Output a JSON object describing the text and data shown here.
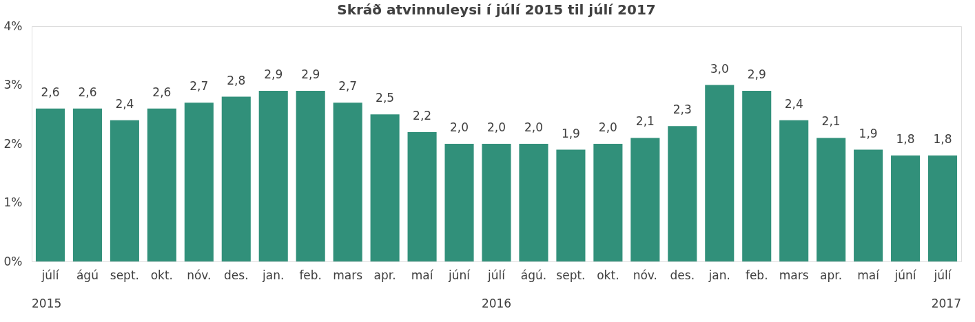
{
  "chart_data": {
    "type": "bar",
    "title": "Skráð atvinnuleysi í júlí 2015 til júlí 2017",
    "categories": [
      "júlí",
      "ágú",
      "sept.",
      "okt.",
      "nóv.",
      "des.",
      "jan.",
      "feb.",
      "mars",
      "apr.",
      "maí",
      "júní",
      "júlí",
      "ágú.",
      "sept.",
      "okt.",
      "nóv.",
      "des.",
      "jan.",
      "feb.",
      "mars",
      "apr.",
      "maí",
      "júní",
      "júlí"
    ],
    "values": [
      2.6,
      2.6,
      2.4,
      2.6,
      2.7,
      2.8,
      2.9,
      2.9,
      2.7,
      2.5,
      2.2,
      2.0,
      2.0,
      2.0,
      1.9,
      2.0,
      2.1,
      2.3,
      3.0,
      2.9,
      2.4,
      2.1,
      1.9,
      1.8,
      1.8
    ],
    "value_labels": [
      "2,6",
      "2,6",
      "2,4",
      "2,6",
      "2,7",
      "2,8",
      "2,9",
      "2,9",
      "2,7",
      "2,5",
      "2,2",
      "2,0",
      "2,0",
      "2,0",
      "1,9",
      "2,0",
      "2,1",
      "2,3",
      "3,0",
      "2,9",
      "2,4",
      "2,1",
      "1,9",
      "1,8",
      "1,8"
    ],
    "color": "#31907a",
    "ylim": [
      0,
      4
    ],
    "yticks": [
      {
        "value": 0,
        "label": "0%"
      },
      {
        "value": 1,
        "label": "1%"
      },
      {
        "value": 2,
        "label": "2%"
      },
      {
        "value": 3,
        "label": "3%"
      },
      {
        "value": 4,
        "label": "4%"
      }
    ],
    "annotations": [
      "2015",
      "2016",
      "2017"
    ],
    "grid": false
  }
}
